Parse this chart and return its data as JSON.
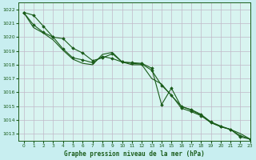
{
  "title": "Graphe pression niveau de la mer (hPa)",
  "bg_color": "#c8eef0",
  "plot_bg_color": "#d8f4f0",
  "grid_color": "#c0b8c8",
  "line_color": "#1a5c1a",
  "marker_color": "#1a5c1a",
  "xlim": [
    -0.5,
    23
  ],
  "ylim": [
    1012.5,
    1022.5
  ],
  "yticks": [
    1013,
    1014,
    1015,
    1016,
    1017,
    1018,
    1019,
    1020,
    1021,
    1022
  ],
  "xticks": [
    0,
    1,
    2,
    3,
    4,
    5,
    6,
    7,
    8,
    9,
    10,
    11,
    12,
    13,
    14,
    15,
    16,
    17,
    18,
    19,
    20,
    21,
    22,
    23
  ],
  "series1_x": [
    0,
    1,
    2,
    3,
    4,
    5,
    6,
    7,
    8,
    9,
    10,
    11,
    12,
    13,
    14,
    15,
    16,
    17,
    18,
    19,
    20,
    21,
    22,
    23
  ],
  "series1": [
    1021.8,
    1021.6,
    1020.8,
    1020.0,
    1019.9,
    1019.2,
    1018.85,
    1018.3,
    1018.5,
    1018.8,
    1018.2,
    1018.15,
    1018.1,
    1017.75,
    1015.1,
    1016.3,
    1014.95,
    1014.75,
    1014.4,
    1013.85,
    1013.55,
    1013.3,
    1012.75,
    1012.6
  ],
  "series2_x": [
    0,
    1,
    2,
    3,
    4,
    5,
    6,
    7,
    8,
    9,
    10,
    11,
    12,
    13,
    14,
    15,
    16,
    17,
    18,
    19,
    20,
    21,
    22,
    23
  ],
  "series2": [
    1021.8,
    1020.9,
    1020.35,
    1020.0,
    1019.15,
    1018.5,
    1018.35,
    1018.15,
    1018.6,
    1018.45,
    1018.2,
    1018.1,
    1018.05,
    1017.6,
    1016.5,
    1015.8,
    1014.85,
    1014.6,
    1014.3,
    1013.8,
    1013.5,
    1013.3,
    1012.85,
    1012.6
  ],
  "series3_x": [
    0,
    1,
    2,
    3,
    4,
    5,
    6,
    7,
    8,
    9,
    10,
    11,
    12,
    13,
    14,
    15,
    16,
    17,
    18,
    19,
    20,
    21,
    22,
    23
  ],
  "series3": [
    1021.8,
    1020.7,
    1020.3,
    1019.8,
    1019.05,
    1018.4,
    1018.1,
    1018.0,
    1018.75,
    1018.9,
    1018.2,
    1018.0,
    1018.0,
    1017.0,
    1016.6,
    1015.75,
    1015.0,
    1014.7,
    1014.35,
    1013.8,
    1013.5,
    1013.3,
    1013.0,
    1012.6
  ]
}
